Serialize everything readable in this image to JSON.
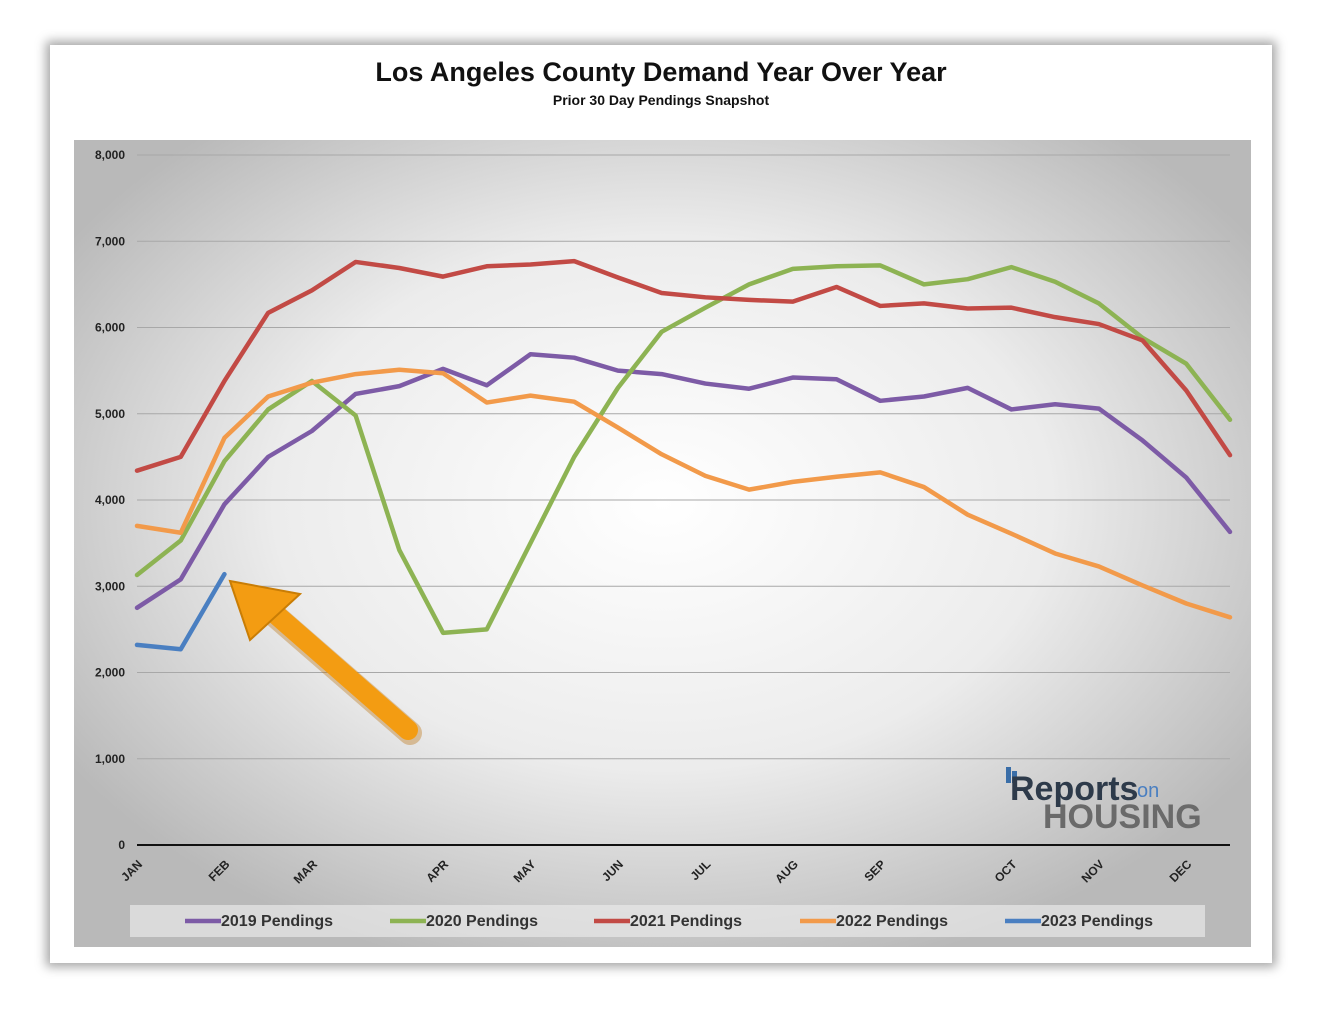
{
  "chart_data": {
    "type": "line",
    "title": "Los Angeles County Demand Year Over Year",
    "subtitle": "Prior 30 Day Pendings Snapshot",
    "ylim": [
      0,
      8000
    ],
    "y_ticks": [
      "0",
      "1,000",
      "2,000",
      "3,000",
      "4,000",
      "5,000",
      "6,000",
      "7,000",
      "8,000"
    ],
    "x_ticks": [
      {
        "label": "JAN",
        "x": 0
      },
      {
        "label": "FEB",
        "x": 2
      },
      {
        "label": "MAR",
        "x": 4
      },
      {
        "label": "APR",
        "x": 7
      },
      {
        "label": "MAY",
        "x": 9
      },
      {
        "label": "JUN",
        "x": 11
      },
      {
        "label": "JUL",
        "x": 13
      },
      {
        "label": "AUG",
        "x": 15
      },
      {
        "label": "SEP",
        "x": 17
      },
      {
        "label": "OCT",
        "x": 20
      },
      {
        "label": "NOV",
        "x": 22
      },
      {
        "label": "DEC",
        "x": 24
      }
    ],
    "x_max": 25,
    "series": [
      {
        "name": "2019 Pendings",
        "color": "#7d5ba6",
        "values": [
          2750,
          3080,
          3950,
          4500,
          4800,
          5230,
          5320,
          5520,
          5330,
          5690,
          5650,
          5500,
          5460,
          5350,
          5290,
          5420,
          5400,
          5150,
          5200,
          5300,
          5050,
          5110,
          5060,
          4690,
          4260,
          3630
        ]
      },
      {
        "name": "2020 Pendings",
        "color": "#8db353",
        "values": [
          3130,
          3530,
          4450,
          5050,
          5380,
          4980,
          3420,
          2460,
          2500,
          3500,
          4500,
          5300,
          5950,
          6230,
          6500,
          6680,
          6710,
          6720,
          6500,
          6560,
          6700,
          6530,
          6280,
          5880,
          5580,
          4930
        ]
      },
      {
        "name": "2021 Pendings",
        "color": "#c24a45",
        "values": [
          4340,
          4500,
          5380,
          6170,
          6430,
          6760,
          6690,
          6590,
          6710,
          6730,
          6770,
          6580,
          6400,
          6350,
          6320,
          6300,
          6470,
          6250,
          6280,
          6220,
          6230,
          6120,
          6040,
          5850,
          5270,
          4520
        ]
      },
      {
        "name": "2022 Pendings",
        "color": "#f29a4a",
        "values": [
          3700,
          3620,
          4720,
          5200,
          5360,
          5460,
          5510,
          5470,
          5130,
          5210,
          5140,
          4840,
          4530,
          4280,
          4120,
          4210,
          4270,
          4320,
          4150,
          3830,
          3610,
          3380,
          3230,
          3010,
          2800,
          2640
        ]
      },
      {
        "name": "2023 Pendings",
        "color": "#4a7fc1",
        "values": [
          2320,
          2270,
          3140
        ]
      }
    ],
    "annotation": "arrow pointing to latest 2023 value"
  },
  "logo": {
    "line1": "Reports",
    "line1_suffix": "on",
    "line2": "HOUSING"
  }
}
